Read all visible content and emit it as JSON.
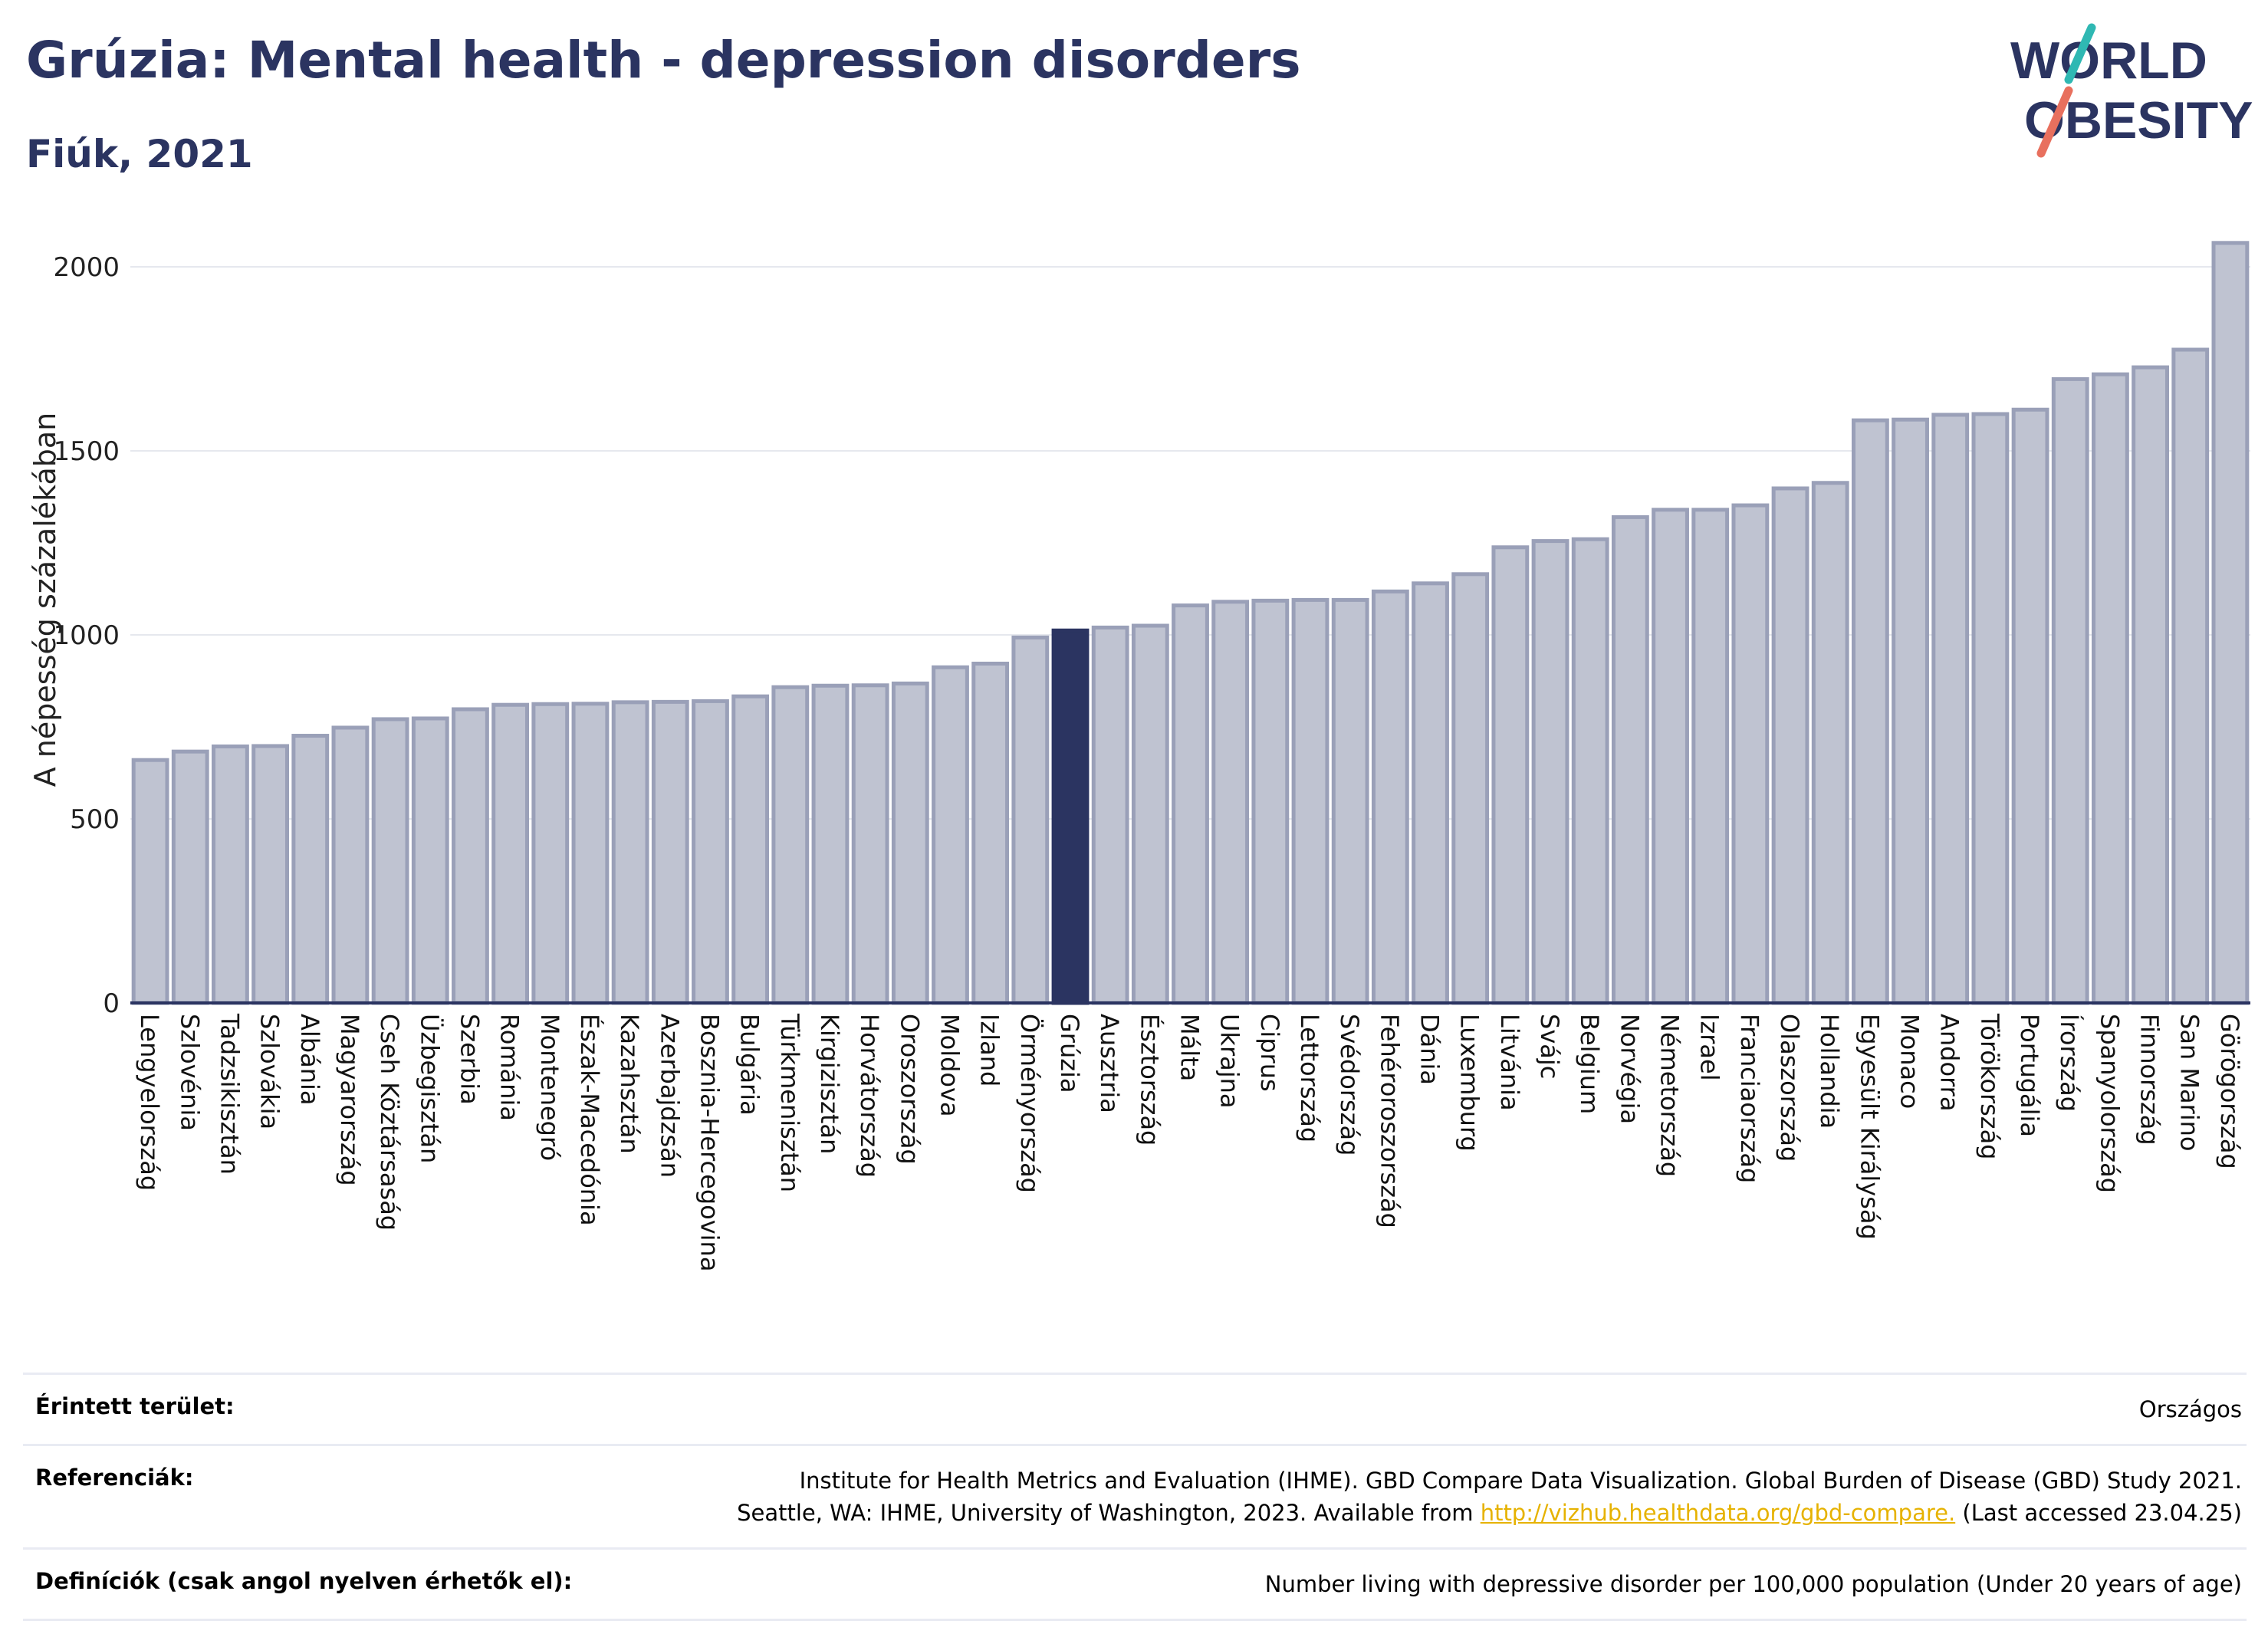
{
  "header": {
    "title": "Grúzia: Mental health - depression disorders",
    "subtitle": "Fiúk, 2021"
  },
  "logo": {
    "line1": "WORLD",
    "line2": "OBESITY",
    "accent_colors": [
      "#2fb8b3",
      "#e8705e"
    ]
  },
  "colors": {
    "bar": "#bfc3d1",
    "bar_border": "#9aa0b8",
    "highlight": "#2b3461",
    "grid": "#e6e8ee",
    "axis": "#2b3461"
  },
  "chart_data": {
    "type": "bar",
    "ylabel": "A népesség százalékában",
    "ylim": [
      0,
      2100
    ],
    "yticks": [
      0,
      500,
      1000,
      1500,
      2000
    ],
    "grid": true,
    "highlight": "Grúzia",
    "categories": [
      "Lengyelország",
      "Szlovénia",
      "Tadzsikisztán",
      "Szlovákia",
      "Albánia",
      "Magyarország",
      "Cseh Köztársaság",
      "Üzbegisztán",
      "Szerbia",
      "Románia",
      "Montenegró",
      "Észak-Macedónia",
      "Kazahsztán",
      "Azerbajdzsán",
      "Bosznia-Hercegovina",
      "Bulgária",
      "Türkmenisztán",
      "Kirgizisztán",
      "Horvátország",
      "Oroszország",
      "Moldova",
      "Izland",
      "Örményország",
      "Grúzia",
      "Ausztria",
      "Észtország",
      "Málta",
      "Ukrajna",
      "Ciprus",
      "Lettország",
      "Svédország",
      "Fehéroroszország",
      "Dánia",
      "Luxemburg",
      "Litvánia",
      "Svájc",
      "Belgium",
      "Norvégia",
      "Németország",
      "Izrael",
      "Franciaország",
      "Olaszország",
      "Hollandia",
      "Egyesült Királyság",
      "Monaco",
      "Andorra",
      "Törökország",
      "Portugália",
      "Írország",
      "Spanyolország",
      "Finnország",
      "San Marino",
      "Görögország"
    ],
    "values": [
      660,
      683,
      697,
      698,
      726,
      748,
      771,
      773,
      798,
      810,
      812,
      813,
      817,
      818,
      820,
      833,
      858,
      862,
      863,
      868,
      912,
      922,
      993,
      1012,
      1020,
      1025,
      1080,
      1090,
      1093,
      1095,
      1095,
      1118,
      1140,
      1165,
      1238,
      1255,
      1260,
      1320,
      1340,
      1340,
      1352,
      1398,
      1413,
      1583,
      1585,
      1598,
      1600,
      1612,
      1695,
      1708,
      1727,
      1775,
      2065
    ]
  },
  "footer": {
    "area_label": "Érintett terület:",
    "area_value": "Országos",
    "ref_label": "Referenciák:",
    "ref_line1": "Institute for Health Metrics and Evaluation (IHME). GBD Compare Data Visualization. Global Burden of Disease (GBD) Study 2021.",
    "ref_line2_pre": "Seattle, WA: IHME, University of Washington, 2023. Available from ",
    "ref_link": "http://vizhub.healthdata.org/gbd-compare.",
    "ref_line2_post": " (Last accessed 23.04.25)",
    "def_label": "Definíciók (csak angol nyelven érhetők el):",
    "def_value": "Number living with depressive disorder per 100,000 population (Under 20 years of age)"
  }
}
